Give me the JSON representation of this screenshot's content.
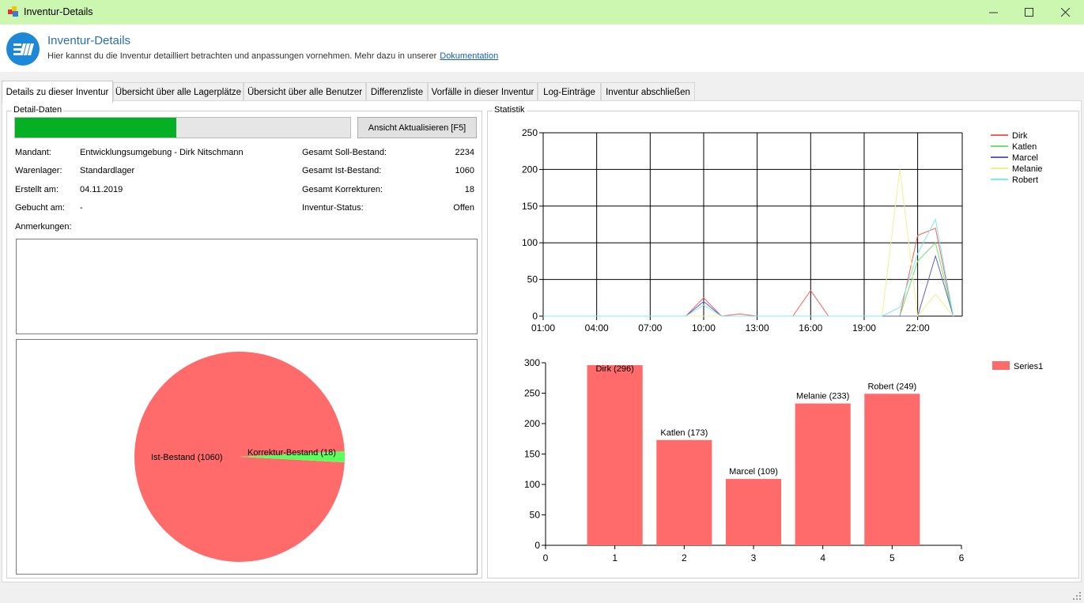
{
  "window": {
    "title": "Inventur-Details"
  },
  "header": {
    "title": "Inventur-Details",
    "subtitle": "Hier kannst du die Inventur detailliert betrachten und anpassungen vornehmen. Mehr dazu in unserer",
    "link": "Dokumentation"
  },
  "tabs": [
    "Details zu dieser Inventur",
    "Übersicht über alle Lagerplätze",
    "Übersicht über alle Benutzer",
    "Differenzliste",
    "Vorfälle in dieser Inventur",
    "Log-Einträge",
    "Inventur abschließen"
  ],
  "detail": {
    "group_title": "Detail-Daten",
    "progress": 0.48,
    "refresh_button": "Ansicht Aktualisieren [F5]",
    "mandant_label": "Mandant:",
    "mandant_value": "Entwicklungsumgebung - Dirk Nitschmann",
    "lager_label": "Warenlager:",
    "lager_value": "Standardlager",
    "erstellt_label": "Erstellt am:",
    "erstellt_value": "04.11.2019",
    "gebucht_label": "Gebucht am:",
    "gebucht_value": "-",
    "soll_label": "Gesamt Soll-Bestand:",
    "soll_value": "2234",
    "ist_label": "Gesamt Ist-Bestand:",
    "ist_value": "1060",
    "korr_label": "Gesamt Korrekturen:",
    "korr_value": "18",
    "status_label": "Inventur-Status:",
    "status_value": "Offen",
    "notes_label": "Anmerkungen:",
    "notes_value": ""
  },
  "statistik": {
    "group_title": "Statistik"
  },
  "colors": {
    "pie_main": "#ff6b6b",
    "pie_korr": "#5dff5d",
    "bar": "#ff6b6b",
    "progress": "#06b025",
    "titlebar": "#ccf7b0"
  },
  "chart_data": [
    {
      "type": "pie",
      "labels": [
        "Ist-Bestand (1060)",
        "Korrektur-Bestand (18)"
      ],
      "values": [
        1060,
        18
      ]
    },
    {
      "type": "line",
      "x_ticks": [
        "01:00",
        "04:00",
        "07:00",
        "10:00",
        "13:00",
        "16:00",
        "19:00",
        "22:00"
      ],
      "ylim": [
        0,
        250
      ],
      "y_ticks": [
        0,
        50,
        100,
        150,
        200,
        250
      ],
      "x": [
        0,
        1,
        2,
        3,
        4,
        5,
        6,
        7,
        8,
        9,
        10,
        11,
        12,
        13,
        14,
        15,
        16,
        17,
        18,
        19,
        20,
        21,
        22,
        23
      ],
      "legend_position": "top-right",
      "series": [
        {
          "name": "Dirk",
          "color": "#f06060",
          "values": [
            0,
            0,
            0,
            0,
            0,
            0,
            0,
            0,
            0,
            25,
            0,
            3,
            0,
            0,
            0,
            35,
            0,
            0,
            0,
            0,
            0,
            110,
            120,
            0
          ]
        },
        {
          "name": "Katlen",
          "color": "#70e070",
          "values": [
            0,
            0,
            0,
            0,
            0,
            0,
            0,
            0,
            0,
            0,
            0,
            0,
            0,
            0,
            0,
            0,
            0,
            0,
            0,
            0,
            0,
            75,
            100,
            0
          ]
        },
        {
          "name": "Marcel",
          "color": "#6060c0",
          "values": [
            0,
            0,
            0,
            0,
            0,
            0,
            0,
            0,
            0,
            20,
            0,
            0,
            0,
            0,
            0,
            0,
            0,
            0,
            0,
            0,
            0,
            0,
            82,
            0
          ]
        },
        {
          "name": "Melanie",
          "color": "#f0f090",
          "values": [
            0,
            0,
            0,
            0,
            0,
            0,
            0,
            0,
            0,
            0,
            0,
            0,
            0,
            0,
            0,
            0,
            0,
            0,
            0,
            0,
            200,
            0,
            30,
            0
          ]
        },
        {
          "name": "Robert",
          "color": "#80e8f0",
          "values": [
            0,
            0,
            0,
            0,
            0,
            0,
            0,
            0,
            0,
            15,
            0,
            0,
            0,
            0,
            0,
            0,
            0,
            0,
            0,
            0,
            12,
            85,
            132,
            0
          ]
        }
      ]
    },
    {
      "type": "bar",
      "x": [
        1,
        2,
        3,
        4,
        5
      ],
      "values": [
        296,
        173,
        109,
        233,
        249
      ],
      "labels": [
        "Dirk (296)",
        "Katlen (173)",
        "Marcel (109)",
        "Melanie (233)",
        "Robert (249)"
      ],
      "xlim": [
        0,
        6
      ],
      "x_ticks": [
        0,
        1,
        2,
        3,
        4,
        5,
        6
      ],
      "ylim": [
        0,
        300
      ],
      "y_ticks": [
        0,
        50,
        100,
        150,
        200,
        250,
        300
      ],
      "series": [
        {
          "name": "Series1",
          "values": [
            296,
            173,
            109,
            233,
            249
          ]
        }
      ],
      "legend_position": "top-right"
    }
  ]
}
